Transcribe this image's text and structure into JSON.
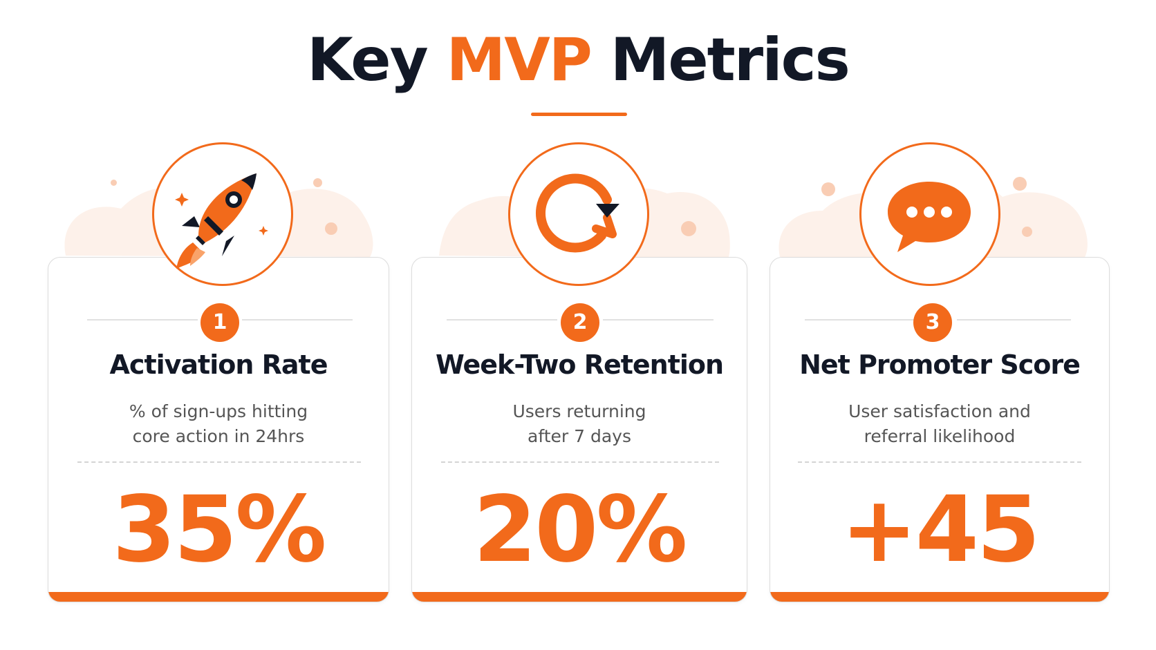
{
  "header": {
    "title_prefix": "Key",
    "title_accent": "MVP",
    "title_suffix": "Metrics"
  },
  "colors": {
    "accent": "#f26a1b",
    "heading": "#121826",
    "body_text": "#555555",
    "blob": "#fdf1ea"
  },
  "cards": [
    {
      "number": "1",
      "icon": "rocket-icon",
      "title": "Activation Rate",
      "desc_line1": "% of sign-ups hitting",
      "desc_line2": "core action in 24hrs",
      "value": "35%"
    },
    {
      "number": "2",
      "icon": "refresh-icon",
      "title": "Week-Two Retention",
      "desc_line1": "Users returning",
      "desc_line2": "after 7 days",
      "value": "20%"
    },
    {
      "number": "3",
      "icon": "chat-bubble-icon",
      "title": "Net Promoter Score",
      "desc_line1": "User satisfaction and",
      "desc_line2": "referral likelihood",
      "value": "+45"
    }
  ]
}
